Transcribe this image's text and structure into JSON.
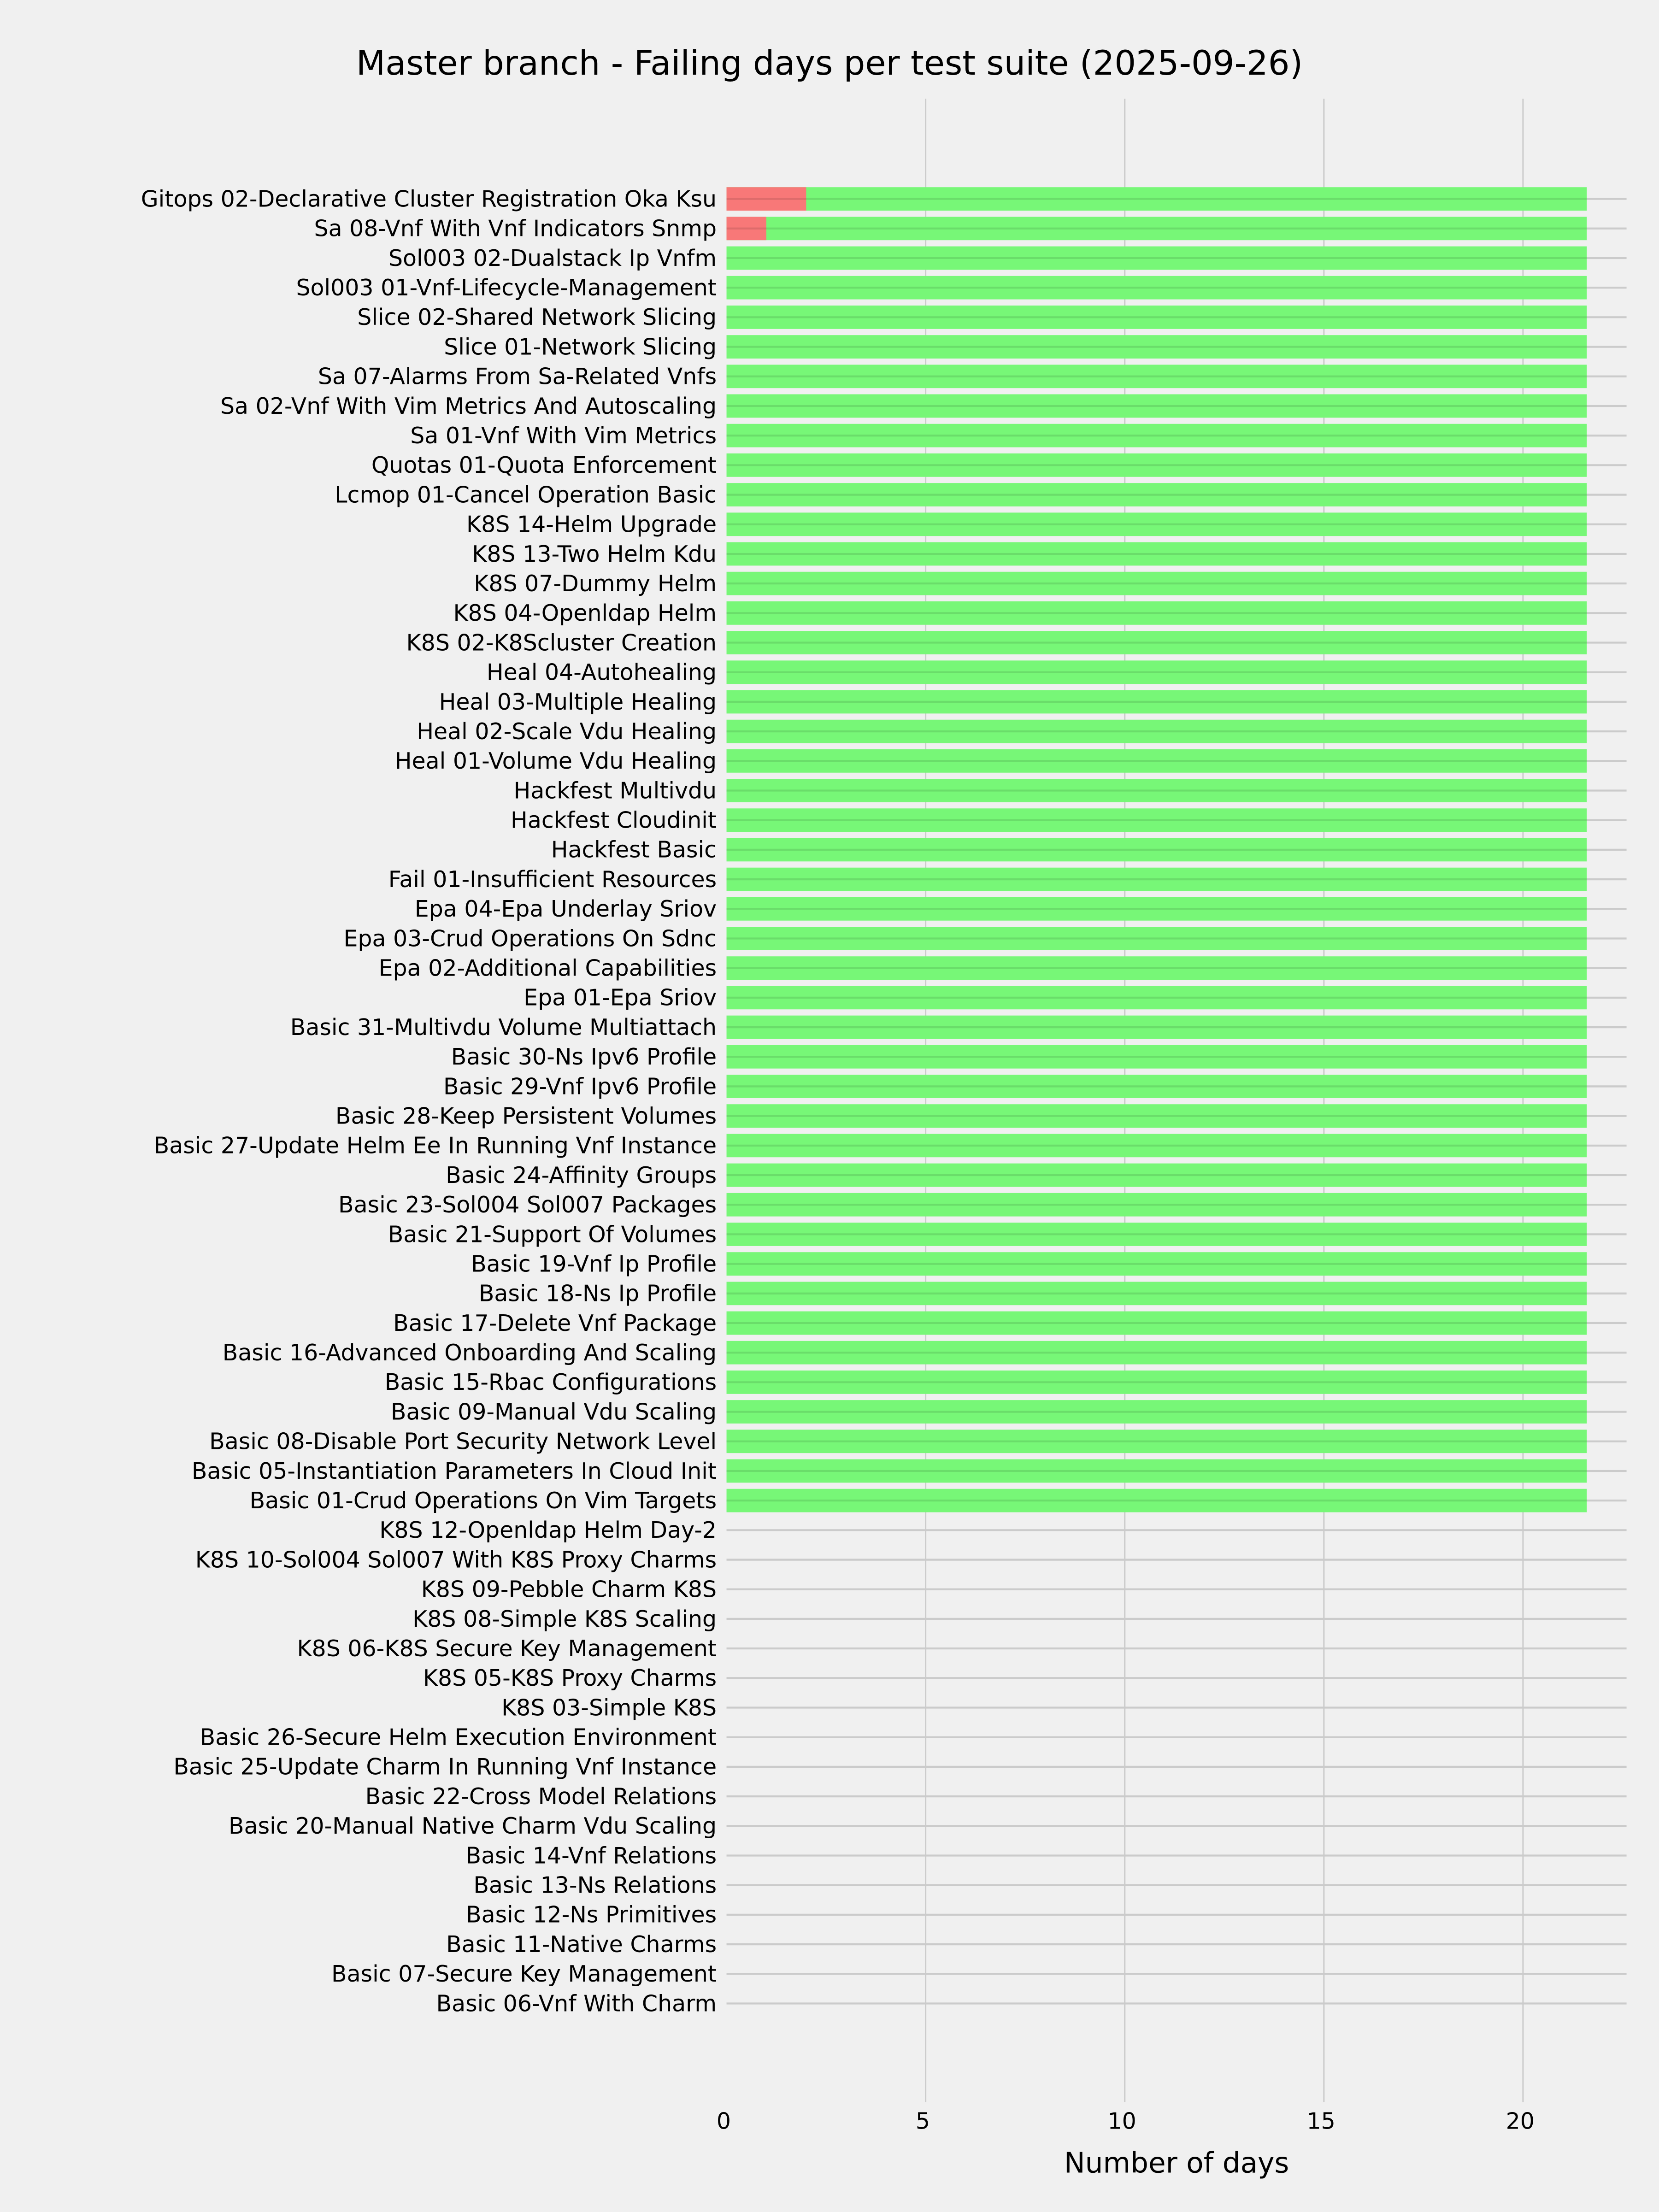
{
  "chart_data": {
    "type": "bar",
    "orientation": "horizontal",
    "stacked_overlay": true,
    "title": "Master branch - Failing days per test suite (2025-09-26)",
    "xlabel": "Number of days",
    "ylabel": "",
    "xlim": [
      0,
      22.6
    ],
    "xticks": [
      "0",
      "5",
      "10",
      "15",
      "20"
    ],
    "grid": true,
    "legend": "none",
    "colors": {
      "failing": "#f87878",
      "total": "#77f777",
      "grid": "#cbcbcb",
      "background": "#f0f0f0"
    },
    "categories": [
      "Gitops 02-Declarative Cluster Registration Oka Ksu",
      "Sa 08-Vnf With Vnf Indicators Snmp",
      "Sol003 02-Dualstack Ip Vnfm",
      "Sol003 01-Vnf-Lifecycle-Management",
      "Slice 02-Shared Network Slicing",
      "Slice 01-Network Slicing",
      "Sa 07-Alarms From Sa-Related Vnfs",
      "Sa 02-Vnf With Vim Metrics And Autoscaling",
      "Sa 01-Vnf With Vim Metrics",
      "Quotas 01-Quota Enforcement",
      "Lcmop 01-Cancel Operation Basic",
      "K8S 14-Helm Upgrade",
      "K8S 13-Two Helm Kdu",
      "K8S 07-Dummy Helm",
      "K8S 04-Openldap Helm",
      "K8S 02-K8Scluster Creation",
      "Heal 04-Autohealing",
      "Heal 03-Multiple Healing",
      "Heal 02-Scale Vdu Healing",
      "Heal 01-Volume Vdu Healing",
      "Hackfest Multivdu",
      "Hackfest Cloudinit",
      "Hackfest Basic",
      "Fail 01-Insufficient Resources",
      "Epa 04-Epa Underlay Sriov",
      "Epa 03-Crud Operations On Sdnc",
      "Epa 02-Additional Capabilities",
      "Epa 01-Epa Sriov",
      "Basic 31-Multivdu Volume Multiattach",
      "Basic 30-Ns Ipv6 Profile",
      "Basic 29-Vnf Ipv6 Profile",
      "Basic 28-Keep Persistent Volumes",
      "Basic 27-Update Helm Ee In Running Vnf Instance",
      "Basic 24-Affinity Groups",
      "Basic 23-Sol004 Sol007 Packages",
      "Basic 21-Support Of Volumes",
      "Basic 19-Vnf Ip Profile",
      "Basic 18-Ns Ip Profile",
      "Basic 17-Delete Vnf Package",
      "Basic 16-Advanced Onboarding And Scaling",
      "Basic 15-Rbac Configurations",
      "Basic 09-Manual Vdu Scaling",
      "Basic 08-Disable Port Security Network Level",
      "Basic 05-Instantiation Parameters In Cloud Init",
      "Basic 01-Crud Operations On Vim Targets",
      "K8S 12-Openldap Helm Day-2",
      "K8S 10-Sol004 Sol007 With K8S Proxy Charms",
      "K8S 09-Pebble Charm K8S",
      "K8S 08-Simple K8S Scaling",
      "K8S 06-K8S Secure Key Management",
      "K8S 05-K8S Proxy Charms",
      "K8S 03-Simple K8S",
      "Basic 26-Secure Helm Execution Environment",
      "Basic 25-Update Charm In Running Vnf Instance",
      "Basic 22-Cross Model Relations",
      "Basic 20-Manual Native Charm Vdu Scaling",
      "Basic 14-Vnf Relations",
      "Basic 13-Ns Relations",
      "Basic 12-Ns Primitives",
      "Basic 11-Native Charms",
      "Basic 07-Secure Key Management",
      "Basic 06-Vnf With Charm"
    ],
    "series": [
      {
        "key": "total",
        "color": "#77f777",
        "values": [
          21.6,
          21.6,
          21.6,
          21.6,
          21.6,
          21.6,
          21.6,
          21.6,
          21.6,
          21.6,
          21.6,
          21.6,
          21.6,
          21.6,
          21.6,
          21.6,
          21.6,
          21.6,
          21.6,
          21.6,
          21.6,
          21.6,
          21.6,
          21.6,
          21.6,
          21.6,
          21.6,
          21.6,
          21.6,
          21.6,
          21.6,
          21.6,
          21.6,
          21.6,
          21.6,
          21.6,
          21.6,
          21.6,
          21.6,
          21.6,
          21.6,
          21.6,
          21.6,
          21.6,
          21.6,
          0,
          0,
          0,
          0,
          0,
          0,
          0,
          0,
          0,
          0,
          0,
          0,
          0,
          0,
          0,
          0,
          0
        ]
      },
      {
        "key": "failing",
        "color": "#f87878",
        "values": [
          2,
          1,
          0,
          0,
          0,
          0,
          0,
          0,
          0,
          0,
          0,
          0,
          0,
          0,
          0,
          0,
          0,
          0,
          0,
          0,
          0,
          0,
          0,
          0,
          0,
          0,
          0,
          0,
          0,
          0,
          0,
          0,
          0,
          0,
          0,
          0,
          0,
          0,
          0,
          0,
          0,
          0,
          0,
          0,
          0,
          0,
          0,
          0,
          0,
          0,
          0,
          0,
          0,
          0,
          0,
          0,
          0,
          0,
          0,
          0,
          0,
          0
        ]
      }
    ]
  }
}
